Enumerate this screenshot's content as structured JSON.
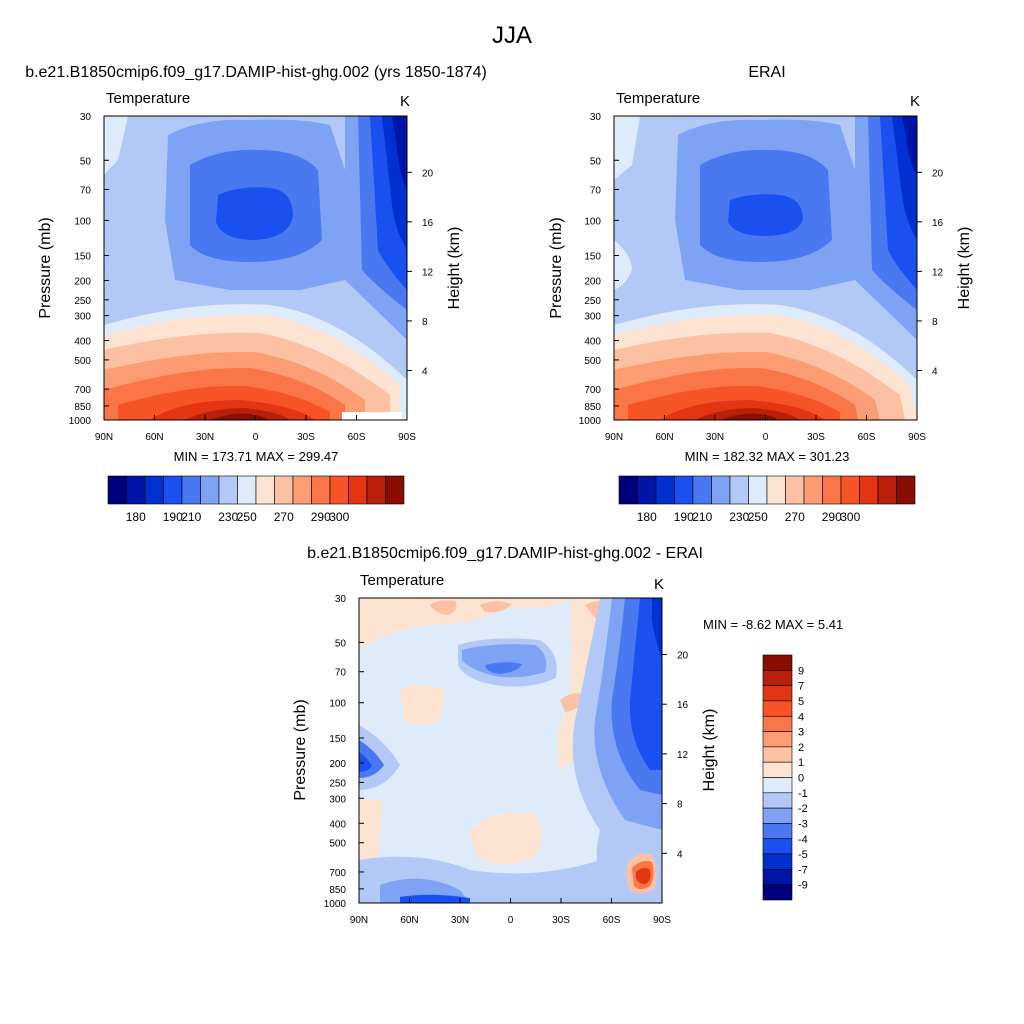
{
  "page": {
    "title": "JJA"
  },
  "chart_data": [
    {
      "type": "contour",
      "title": "b.e21.B1850cmip6.f09_g17.DAMIP-hist-ghg.002 (yrs 1850-1874)",
      "left_string": "Temperature",
      "right_string": "K",
      "xlabel": "",
      "ylabel": "Pressure (mb)",
      "ylabel_right": "Height (km)",
      "x_ticks": [
        "90N",
        "60N",
        "30N",
        "0",
        "30S",
        "60S",
        "90S"
      ],
      "x_range": [
        90,
        -90
      ],
      "y_ticks": [
        30,
        50,
        70,
        100,
        150,
        200,
        250,
        300,
        400,
        500,
        700,
        850,
        1000
      ],
      "y_scale": "log",
      "y_range": [
        30,
        1000
      ],
      "height_ticks": [
        4,
        8,
        12,
        16,
        20
      ],
      "stats": "MIN = 173.71  MAX = 299.47",
      "min": 173.71,
      "max": 299.47,
      "colorbar": {
        "orientation": "horizontal",
        "labels": [
          "180",
          "190",
          "210",
          "230",
          "250",
          "270",
          "290",
          "300"
        ],
        "colors": [
          "#00007f",
          "#0015a8",
          "#0030d0",
          "#1a50f0",
          "#4a78f0",
          "#7ea2f4",
          "#b2c9f8",
          "#deebfb",
          "#fde3d2",
          "#fcc1a2",
          "#fb9c72",
          "#fa7649",
          "#f65427",
          "#e33512",
          "#b8200c",
          "#8a0d04"
        ]
      }
    },
    {
      "type": "contour",
      "title": "ERAI",
      "left_string": "Temperature",
      "right_string": "K",
      "xlabel": "",
      "ylabel": "Pressure (mb)",
      "ylabel_right": "Height (km)",
      "x_ticks": [
        "90N",
        "60N",
        "30N",
        "0",
        "30S",
        "60S",
        "90S"
      ],
      "x_range": [
        90,
        -90
      ],
      "y_ticks": [
        30,
        50,
        70,
        100,
        150,
        200,
        250,
        300,
        400,
        500,
        700,
        850,
        1000
      ],
      "y_scale": "log",
      "y_range": [
        30,
        1000
      ],
      "height_ticks": [
        4,
        8,
        12,
        16,
        20
      ],
      "stats": "MIN = 182.32  MAX = 301.23",
      "min": 182.32,
      "max": 301.23,
      "colorbar": {
        "orientation": "horizontal",
        "labels": [
          "180",
          "190",
          "210",
          "230",
          "250",
          "270",
          "290",
          "300"
        ],
        "colors": [
          "#00007f",
          "#0015a8",
          "#0030d0",
          "#1a50f0",
          "#4a78f0",
          "#7ea2f4",
          "#b2c9f8",
          "#deebfb",
          "#fde3d2",
          "#fcc1a2",
          "#fb9c72",
          "#fa7649",
          "#f65427",
          "#e33512",
          "#b8200c",
          "#8a0d04"
        ]
      }
    },
    {
      "type": "contour",
      "title": "b.e21.B1850cmip6.f09_g17.DAMIP-hist-ghg.002 - ERAI",
      "left_string": "Temperature",
      "right_string": "K",
      "xlabel": "",
      "ylabel": "Pressure (mb)",
      "ylabel_right": "Height (km)",
      "x_ticks": [
        "90N",
        "60N",
        "30N",
        "0",
        "30S",
        "60S",
        "90S"
      ],
      "x_range": [
        90,
        -90
      ],
      "y_ticks": [
        30,
        50,
        70,
        100,
        150,
        200,
        250,
        300,
        400,
        500,
        700,
        850,
        1000
      ],
      "y_scale": "log",
      "y_range": [
        30,
        1000
      ],
      "height_ticks": [
        4,
        8,
        12,
        16,
        20
      ],
      "stats": "MIN =  -8.62  MAX =   5.41",
      "min": -8.62,
      "max": 5.41,
      "colorbar": {
        "orientation": "vertical",
        "labels": [
          "9",
          "7",
          "5",
          "4",
          "3",
          "2",
          "1",
          "0",
          "-1",
          "-2",
          "-3",
          "-4",
          "-5",
          "-7",
          "-9"
        ],
        "colors": [
          "#8a0d04",
          "#b8200c",
          "#e33512",
          "#f65427",
          "#fa7649",
          "#fb9c72",
          "#fcc1a2",
          "#fde3d2",
          "#deebfb",
          "#b2c9f8",
          "#7ea2f4",
          "#4a78f0",
          "#1a50f0",
          "#0030d0",
          "#0015a8",
          "#00007f"
        ]
      }
    }
  ]
}
